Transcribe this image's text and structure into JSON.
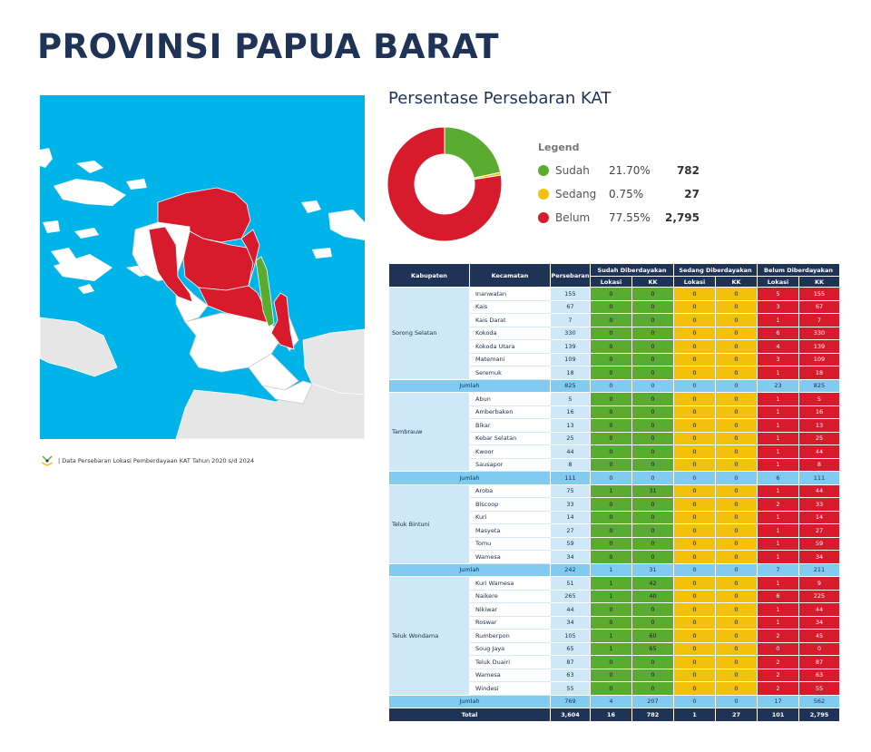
{
  "title": "PROVINSI PAPUA BARAT",
  "source_note": "| Data Persebaran Lokasi Pemberdayaan KAT Tahun 2020 s/d 2024",
  "chart_title": "Persentase Persebaran KAT",
  "colors": {
    "sudah": "#5aac30",
    "sedang": "#f3c10b",
    "belum": "#d81b2c",
    "navy": "#1f3356",
    "sea": "#00b4ea"
  },
  "chart_data": {
    "type": "pie",
    "title": "Persentase Persebaran KAT",
    "legend_title": "Legend",
    "legend_position": "right",
    "slices": [
      {
        "label": "Sudah",
        "percent": 21.7,
        "percent_label": "21.70%",
        "value": 782,
        "value_label": "782",
        "color": "#5aac30"
      },
      {
        "label": "Sedang",
        "percent": 0.75,
        "percent_label": "0.75%",
        "value": 27,
        "value_label": "27",
        "color": "#f3c10b"
      },
      {
        "label": "Belum",
        "percent": 77.55,
        "percent_label": "77.55%",
        "value": 2795,
        "value_label": "2,795",
        "color": "#d81b2c"
      }
    ]
  },
  "table": {
    "headers": {
      "kabupaten": "Kabupaten",
      "kecamatan": "Kecamatan",
      "persebaran": "Persebaran",
      "sudah": "Sudah Diberdayakan",
      "sedang": "Sedang Diberdayakan",
      "belum": "Belum Diberdayakan",
      "lokasi": "Lokasi",
      "kk": "KK"
    },
    "groups": [
      {
        "kabupaten": "Sorong Selatan",
        "rows": [
          [
            "Inanwatan",
            "155",
            "0",
            "0",
            "0",
            "0",
            "5",
            "155"
          ],
          [
            "Kais",
            "67",
            "0",
            "0",
            "0",
            "0",
            "3",
            "67"
          ],
          [
            "Kais Darat",
            "7",
            "0",
            "0",
            "0",
            "0",
            "1",
            "7"
          ],
          [
            "Kokoda",
            "330",
            "0",
            "0",
            "0",
            "0",
            "6",
            "330"
          ],
          [
            "Kokoda Utara",
            "139",
            "0",
            "0",
            "0",
            "0",
            "4",
            "139"
          ],
          [
            "Matemani",
            "109",
            "0",
            "0",
            "0",
            "0",
            "3",
            "109"
          ],
          [
            "Seremuk",
            "18",
            "0",
            "0",
            "0",
            "0",
            "1",
            "18"
          ]
        ],
        "jumlah": [
          "Jumlah",
          "825",
          "0",
          "0",
          "0",
          "0",
          "23",
          "825"
        ]
      },
      {
        "kabupaten": "Tambrauw",
        "rows": [
          [
            "Abun",
            "5",
            "0",
            "0",
            "0",
            "0",
            "1",
            "5"
          ],
          [
            "Amberbaken",
            "16",
            "0",
            "0",
            "0",
            "0",
            "1",
            "16"
          ],
          [
            "Bikar",
            "13",
            "0",
            "0",
            "0",
            "0",
            "1",
            "13"
          ],
          [
            "Kebar Selatan",
            "25",
            "0",
            "0",
            "0",
            "0",
            "1",
            "25"
          ],
          [
            "Kwoor",
            "44",
            "0",
            "0",
            "0",
            "0",
            "1",
            "44"
          ],
          [
            "Sausapor",
            "8",
            "0",
            "0",
            "0",
            "0",
            "1",
            "8"
          ]
        ],
        "jumlah": [
          "Jumlah",
          "111",
          "0",
          "0",
          "0",
          "0",
          "6",
          "111"
        ]
      },
      {
        "kabupaten": "Teluk Bintuni",
        "rows": [
          [
            "Aroba",
            "75",
            "1",
            "31",
            "0",
            "0",
            "1",
            "44"
          ],
          [
            "Biscoop",
            "33",
            "0",
            "0",
            "0",
            "0",
            "2",
            "33"
          ],
          [
            "Kuri",
            "14",
            "0",
            "0",
            "0",
            "0",
            "1",
            "14"
          ],
          [
            "Masyeta",
            "27",
            "0",
            "0",
            "0",
            "0",
            "1",
            "27"
          ],
          [
            "Tomu",
            "59",
            "0",
            "0",
            "0",
            "0",
            "1",
            "59"
          ],
          [
            "Wamesa",
            "34",
            "0",
            "0",
            "0",
            "0",
            "1",
            "34"
          ]
        ],
        "jumlah": [
          "Jumlah",
          "242",
          "1",
          "31",
          "0",
          "0",
          "7",
          "211"
        ]
      },
      {
        "kabupaten": "Teluk Wondama",
        "rows": [
          [
            "Kuri Wamesa",
            "51",
            "1",
            "42",
            "0",
            "0",
            "1",
            "9"
          ],
          [
            "Naikere",
            "265",
            "1",
            "40",
            "0",
            "0",
            "6",
            "225"
          ],
          [
            "Nikiwar",
            "44",
            "0",
            "0",
            "0",
            "0",
            "1",
            "44"
          ],
          [
            "Roswar",
            "34",
            "0",
            "0",
            "0",
            "0",
            "1",
            "34"
          ],
          [
            "Rumberpon",
            "105",
            "1",
            "60",
            "0",
            "0",
            "2",
            "45"
          ],
          [
            "Soug Jaya",
            "65",
            "1",
            "65",
            "0",
            "0",
            "0",
            "0"
          ],
          [
            "Teluk Duairi",
            "87",
            "0",
            "0",
            "0",
            "0",
            "2",
            "87"
          ],
          [
            "Wamesa",
            "63",
            "0",
            "0",
            "0",
            "0",
            "2",
            "63"
          ],
          [
            "Windesi",
            "55",
            "0",
            "0",
            "0",
            "0",
            "2",
            "55"
          ]
        ],
        "jumlah": [
          "Jumlah",
          "769",
          "4",
          "207",
          "0",
          "0",
          "17",
          "562"
        ]
      }
    ],
    "total": [
      "Total",
      "3,604",
      "16",
      "782",
      "1",
      "27",
      "101",
      "2,795"
    ]
  }
}
